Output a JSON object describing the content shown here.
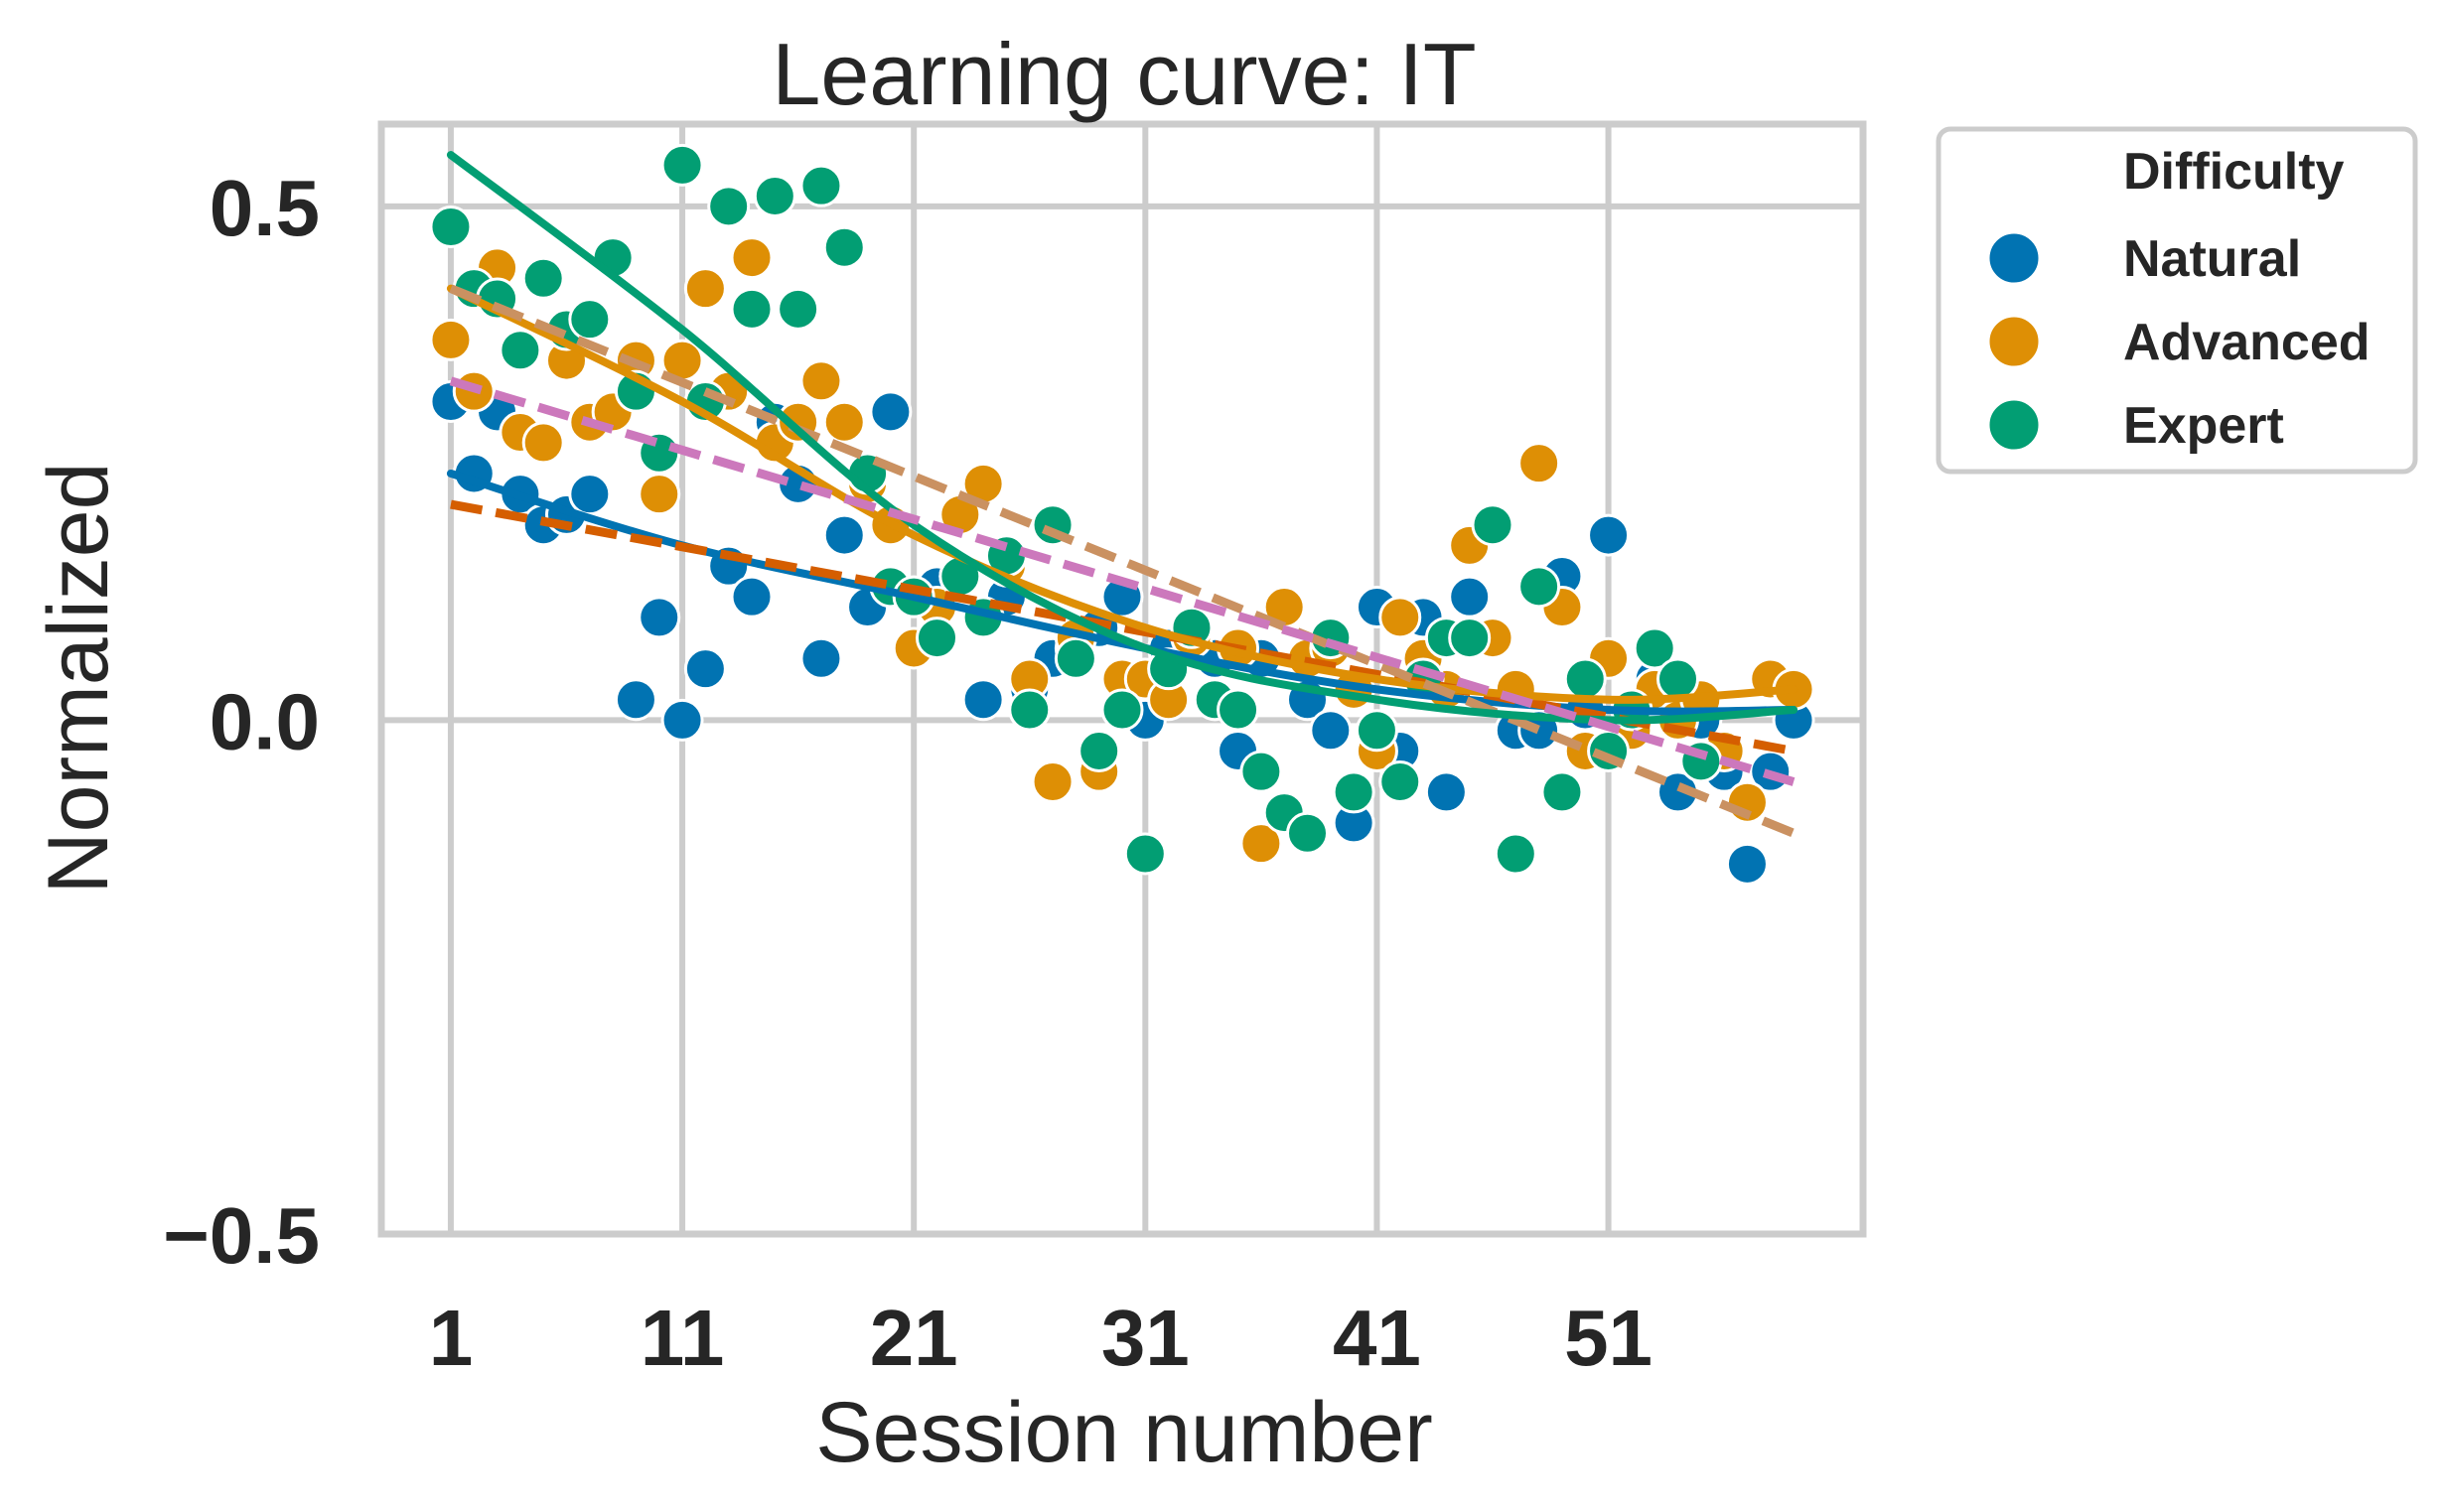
{
  "chart_data": {
    "type": "scatter",
    "title": "Learning curve: IT",
    "xlabel": "Session number",
    "ylabel": "Normalized",
    "xlim": [
      -2,
      62
    ],
    "ylim": [
      -0.5,
      0.58
    ],
    "xticks": [
      1,
      11,
      21,
      31,
      41,
      51
    ],
    "yticks": [
      -0.5,
      0.0,
      0.5
    ],
    "ytick_labels": [
      "−0.5",
      "0.0",
      "0.5"
    ],
    "grid": true,
    "legend": {
      "title": "Difficulty",
      "placement": "outside-right-top"
    },
    "series": [
      {
        "name": "Natural",
        "color": "#0173b2",
        "points": [
          [
            1,
            0.31
          ],
          [
            2,
            0.24
          ],
          [
            3,
            0.3
          ],
          [
            4,
            0.22
          ],
          [
            5,
            0.19
          ],
          [
            6,
            0.2
          ],
          [
            7,
            0.22
          ],
          [
            8,
            0.3
          ],
          [
            9,
            0.02
          ],
          [
            10,
            0.1
          ],
          [
            11,
            0.0
          ],
          [
            12,
            0.05
          ],
          [
            13,
            0.15
          ],
          [
            14,
            0.12
          ],
          [
            15,
            0.29
          ],
          [
            16,
            0.23
          ],
          [
            17,
            0.06
          ],
          [
            18,
            0.18
          ],
          [
            19,
            0.11
          ],
          [
            20,
            0.3
          ],
          [
            21,
            0.12
          ],
          [
            22,
            0.13
          ],
          [
            23,
            0.14
          ],
          [
            24,
            0.02
          ],
          [
            25,
            0.12
          ],
          [
            26,
            0.03
          ],
          [
            27,
            0.06
          ],
          [
            28,
            0.07
          ],
          [
            29,
            0.09
          ],
          [
            30,
            0.12
          ],
          [
            31,
            0.0
          ],
          [
            32,
            0.07
          ],
          [
            33,
            0.09
          ],
          [
            34,
            0.06
          ],
          [
            35,
            -0.03
          ],
          [
            36,
            0.06
          ],
          [
            37,
            0.11
          ],
          [
            38,
            0.02
          ],
          [
            39,
            -0.01
          ],
          [
            40,
            -0.1
          ],
          [
            41,
            0.11
          ],
          [
            42,
            -0.03
          ],
          [
            43,
            0.1
          ],
          [
            44,
            -0.07
          ],
          [
            45,
            0.12
          ],
          [
            46,
            0.08
          ],
          [
            47,
            -0.01
          ],
          [
            48,
            -0.01
          ],
          [
            49,
            0.14
          ],
          [
            50,
            0.01
          ],
          [
            51,
            0.18
          ],
          [
            52,
            -0.01
          ],
          [
            53,
            0.04
          ],
          [
            54,
            -0.07
          ],
          [
            55,
            0.0
          ],
          [
            56,
            -0.05
          ],
          [
            57,
            -0.14
          ],
          [
            58,
            -0.05
          ],
          [
            59,
            0.0
          ]
        ],
        "fit_line": [
          [
            1,
            0.24
          ],
          [
            11,
            0.17
          ],
          [
            21,
            0.12
          ],
          [
            31,
            0.07
          ],
          [
            41,
            0.03
          ],
          [
            51,
            0.01
          ],
          [
            59,
            0.01
          ]
        ],
        "linear_fit": [
          [
            1,
            0.21
          ],
          [
            59,
            -0.03
          ]
        ]
      },
      {
        "name": "Advanced",
        "color": "#de8f05",
        "points": [
          [
            1,
            0.37
          ],
          [
            2,
            0.32
          ],
          [
            3,
            0.44
          ],
          [
            4,
            0.28
          ],
          [
            5,
            0.27
          ],
          [
            6,
            0.35
          ],
          [
            7,
            0.29
          ],
          [
            8,
            0.3
          ],
          [
            9,
            0.35
          ],
          [
            10,
            0.22
          ],
          [
            11,
            0.35
          ],
          [
            12,
            0.42
          ],
          [
            13,
            0.32
          ],
          [
            14,
            0.45
          ],
          [
            15,
            0.27
          ],
          [
            16,
            0.29
          ],
          [
            17,
            0.33
          ],
          [
            18,
            0.29
          ],
          [
            19,
            0.23
          ],
          [
            20,
            0.19
          ],
          [
            21,
            0.07
          ],
          [
            22,
            0.11
          ],
          [
            23,
            0.2
          ],
          [
            24,
            0.23
          ],
          [
            25,
            0.15
          ],
          [
            26,
            0.04
          ],
          [
            27,
            -0.06
          ],
          [
            28,
            0.08
          ],
          [
            29,
            -0.05
          ],
          [
            30,
            0.04
          ],
          [
            31,
            0.04
          ],
          [
            32,
            0.02
          ],
          [
            33,
            0.08
          ],
          [
            34,
            0.02
          ],
          [
            35,
            0.07
          ],
          [
            36,
            -0.12
          ],
          [
            37,
            0.11
          ],
          [
            38,
            0.06
          ],
          [
            39,
            0.07
          ],
          [
            40,
            0.03
          ],
          [
            41,
            -0.03
          ],
          [
            42,
            0.1
          ],
          [
            43,
            0.06
          ],
          [
            44,
            0.03
          ],
          [
            45,
            0.17
          ],
          [
            46,
            0.08
          ],
          [
            47,
            0.03
          ],
          [
            48,
            0.25
          ],
          [
            49,
            0.11
          ],
          [
            50,
            -0.03
          ],
          [
            51,
            0.06
          ],
          [
            52,
            -0.01
          ],
          [
            53,
            0.03
          ],
          [
            54,
            0.0
          ],
          [
            55,
            0.02
          ],
          [
            56,
            -0.03
          ],
          [
            57,
            -0.08
          ],
          [
            58,
            0.04
          ],
          [
            59,
            0.03
          ]
        ],
        "fit_line": [
          [
            1,
            0.42
          ],
          [
            11,
            0.31
          ],
          [
            21,
            0.18
          ],
          [
            31,
            0.09
          ],
          [
            41,
            0.04
          ],
          [
            51,
            0.02
          ],
          [
            59,
            0.03
          ]
        ],
        "linear_fit": [
          [
            1,
            0.42
          ],
          [
            59,
            -0.11
          ]
        ]
      },
      {
        "name": "Expert",
        "color": "#029e73",
        "points": [
          [
            1,
            0.48
          ],
          [
            2,
            0.42
          ],
          [
            3,
            0.41
          ],
          [
            4,
            0.36
          ],
          [
            5,
            0.43
          ],
          [
            6,
            0.38
          ],
          [
            7,
            0.39
          ],
          [
            8,
            0.45
          ],
          [
            9,
            0.32
          ],
          [
            10,
            0.26
          ],
          [
            11,
            0.54
          ],
          [
            12,
            0.31
          ],
          [
            13,
            0.5
          ],
          [
            14,
            0.4
          ],
          [
            15,
            0.51
          ],
          [
            16,
            0.4
          ],
          [
            17,
            0.52
          ],
          [
            18,
            0.46
          ],
          [
            19,
            0.24
          ],
          [
            20,
            0.13
          ],
          [
            21,
            0.12
          ],
          [
            22,
            0.08
          ],
          [
            23,
            0.14
          ],
          [
            24,
            0.1
          ],
          [
            25,
            0.16
          ],
          [
            26,
            0.01
          ],
          [
            27,
            0.19
          ],
          [
            28,
            0.06
          ],
          [
            29,
            -0.03
          ],
          [
            30,
            0.01
          ],
          [
            31,
            -0.13
          ],
          [
            32,
            0.05
          ],
          [
            33,
            0.09
          ],
          [
            34,
            0.02
          ],
          [
            35,
            0.01
          ],
          [
            36,
            -0.05
          ],
          [
            37,
            -0.09
          ],
          [
            38,
            -0.11
          ],
          [
            39,
            0.08
          ],
          [
            40,
            -0.07
          ],
          [
            41,
            -0.01
          ],
          [
            42,
            -0.06
          ],
          [
            43,
            0.04
          ],
          [
            44,
            0.08
          ],
          [
            45,
            0.08
          ],
          [
            46,
            0.19
          ],
          [
            47,
            -0.13
          ],
          [
            48,
            0.13
          ],
          [
            49,
            -0.07
          ],
          [
            50,
            0.04
          ],
          [
            51,
            -0.03
          ],
          [
            52,
            0.01
          ],
          [
            53,
            0.07
          ],
          [
            54,
            0.04
          ],
          [
            55,
            -0.04
          ]
        ],
        "fit_line": [
          [
            1,
            0.55
          ],
          [
            11,
            0.38
          ],
          [
            21,
            0.19
          ],
          [
            31,
            0.07
          ],
          [
            41,
            0.02
          ],
          [
            51,
            0.0
          ],
          [
            59,
            0.01
          ]
        ],
        "linear_fit": [
          [
            1,
            0.33
          ],
          [
            59,
            -0.06
          ]
        ]
      }
    ],
    "linear_fit_colors": {
      "Natural": "#d55e00",
      "Advanced": "#ca9161",
      "Expert": "#cc78bc"
    }
  }
}
